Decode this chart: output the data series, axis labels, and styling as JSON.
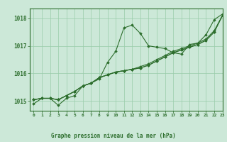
{
  "title": "Graphe pression niveau de la mer (hPa)",
  "background_color": "#cce8d8",
  "grid_color": "#99ccaa",
  "line_color": "#2d6e2d",
  "xlim": [
    -0.5,
    23
  ],
  "ylim": [
    1014.65,
    1018.35
  ],
  "yticks": [
    1015,
    1016,
    1017,
    1018
  ],
  "xticks": [
    0,
    1,
    2,
    3,
    4,
    5,
    6,
    7,
    8,
    9,
    10,
    11,
    12,
    13,
    14,
    15,
    16,
    17,
    18,
    19,
    20,
    21,
    22,
    23
  ],
  "series": [
    [
      1014.9,
      1015.1,
      1015.1,
      1014.85,
      1015.1,
      1015.2,
      1015.55,
      1015.65,
      1015.8,
      1016.4,
      1016.8,
      1017.65,
      1017.75,
      1017.45,
      1017.0,
      1016.95,
      1016.9,
      1016.75,
      1016.7,
      1017.05,
      1017.1,
      1017.4,
      1017.95,
      1018.15
    ],
    [
      1015.05,
      1015.1,
      1015.1,
      1015.05,
      1015.2,
      1015.35,
      1015.55,
      1015.65,
      1015.85,
      1015.95,
      1016.05,
      1016.1,
      1016.15,
      1016.2,
      1016.3,
      1016.45,
      1016.6,
      1016.75,
      1016.85,
      1016.95,
      1017.05,
      1017.2,
      1017.5,
      1018.1
    ],
    [
      1015.05,
      1015.1,
      1015.1,
      1015.05,
      1015.2,
      1015.35,
      1015.55,
      1015.65,
      1015.85,
      1015.95,
      1016.05,
      1016.1,
      1016.15,
      1016.2,
      1016.3,
      1016.45,
      1016.6,
      1016.75,
      1016.85,
      1016.95,
      1017.05,
      1017.2,
      1017.5,
      1018.1
    ],
    [
      1015.05,
      1015.1,
      1015.1,
      1015.05,
      1015.2,
      1015.35,
      1015.55,
      1015.65,
      1015.85,
      1015.95,
      1016.05,
      1016.1,
      1016.15,
      1016.25,
      1016.35,
      1016.5,
      1016.65,
      1016.8,
      1016.9,
      1017.0,
      1017.1,
      1017.25,
      1017.55,
      1018.1
    ]
  ]
}
